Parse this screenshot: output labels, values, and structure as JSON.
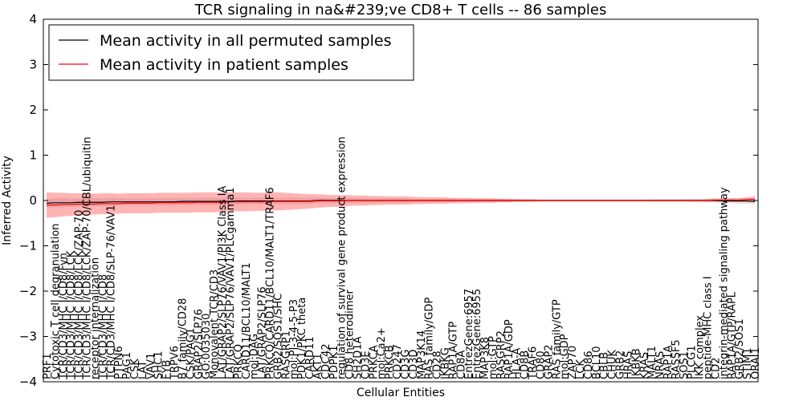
{
  "chart_data": {
    "type": "line",
    "title": "TCR signaling in na&#239;ve CD8+ T cells -- 86 samples",
    "xlabel": "Cellular Entities",
    "ylabel": "Inferred Activity",
    "ylim": [
      -4,
      4
    ],
    "yticks": [
      -4,
      -3,
      -2,
      -1,
      0,
      1,
      2,
      3,
      4
    ],
    "grid": false,
    "legend_position": "top-left",
    "categories": [
      "PRF1",
      "Cytotoxic T cell degranulation",
      "TCR/CD3/MHC I/CD8/Fyn",
      "TCR/CD3/MHC I/CD8/LCK",
      "TCR/CD3/MHC I/CD8/LCK/ZAP-70",
      "TCR/CD3/MHC I/CD8/LCK/ZAP-70/CBL/ubiquitin",
      "receptor internalization",
      "TCR/CD3/MHC I/CD8",
      "TCR/CD3/MHC I/CD8/SLP-76/VAV1",
      "PTPN6",
      "PAG1",
      "CSK",
      "LAT",
      "VAV1",
      "SHC1",
      "FYB",
      "TRPV6",
      "B7 family/CD28",
      "CSK/PAG1",
      "GRAP2/SLP76",
      "GO:0035030",
      "Monovalent TCR/CD3",
      "LAT/GRAP2/SLP76/VAV1/PI3K Class IA",
      "LAT/GRAP2/SLP76/VAV1/PLCgamma1",
      "PRKCQ",
      "CARD11/BCL10/MALT1",
      "mol:DAG",
      "LAT/GRAP2/SLP76",
      "PRKCQ/CARD11/BCL10/MALT1/TRAF6",
      "GRB2/SOS1/SHC",
      "RASGRP1",
      "mol:PI-3-4-5-P3",
      "PDK1/PKC theta",
      "CARD11",
      "AKT1",
      "CDC42",
      "PDPK1",
      "regulation of survival gene product expression",
      "CD8 heterodimer",
      "SH2D1A",
      "CD3E",
      "PRKCA",
      "mol:Ca2+",
      "PRKCB",
      "CD247",
      "CD3G",
      "CD3D",
      "MAP3K14",
      "RAS family/GDP",
      "CD28",
      "IKBKG",
      "RAP1A/GTP",
      "CD8A",
      "EntrezGene:6957",
      "EntrezGene:6955",
      "MAP3K8",
      "mol:GTP",
      "RASGRP2",
      "RAP1A/GDP",
      "HLA-A",
      "CD8B",
      "TRAF6",
      "CD80",
      "GRAP2",
      "RAS family/GTP",
      "mol:GDP",
      "ZAP70",
      "LCK",
      "CD86",
      "BCL10",
      "CBLB",
      "CHUK",
      "GRB2",
      "HRAS",
      "IKBKB",
      "KRAS",
      "MALT1",
      "NRAS",
      "RAP1A",
      "RASSF5",
      "SOS1",
      "PLCG1",
      "IKK complex",
      "peptide-MHC class I",
      "CD2",
      "integrin-mediated signaling pathway",
      "RAP1A/GTP/RAPL",
      "GRB2/SOS1",
      "STIM1",
      "ORAI1"
    ],
    "series": [
      {
        "name": "Mean activity in all permuted samples",
        "color": "#000000",
        "values": [
          -0.06,
          -0.05,
          -0.05,
          -0.05,
          -0.04,
          -0.04,
          -0.04,
          -0.04,
          -0.03,
          -0.03,
          -0.03,
          -0.03,
          -0.03,
          -0.03,
          -0.03,
          -0.03,
          -0.03,
          -0.02,
          -0.02,
          -0.02,
          -0.02,
          -0.02,
          -0.02,
          -0.02,
          -0.01,
          -0.01,
          -0.01,
          -0.01,
          -0.01,
          -0.01,
          -0.01,
          -0.01,
          -0.01,
          -0.01,
          0.0,
          0.0,
          0.0,
          0.0,
          0.0,
          0.0,
          0.0,
          0.0,
          0.0,
          0.0,
          0.0,
          0.0,
          0.0,
          0.0,
          0.0,
          0.0,
          0.0,
          0.0,
          0.0,
          0.0,
          0.0,
          0.0,
          0.0,
          0.0,
          0.0,
          0.0,
          0.0,
          0.0,
          0.0,
          0.0,
          0.0,
          0.0,
          0.0,
          0.0,
          0.0,
          0.0,
          0.0,
          0.0,
          0.0,
          0.0,
          0.0,
          0.0,
          0.0,
          0.0,
          0.0,
          0.0,
          0.0,
          0.0,
          0.0,
          0.0,
          0.0,
          -0.01,
          -0.01,
          -0.01,
          -0.01,
          -0.02
        ],
        "band": [
          0.1,
          0.1,
          0.1,
          0.09,
          0.09,
          0.09,
          0.09,
          0.09,
          0.09,
          0.08,
          0.08,
          0.08,
          0.08,
          0.08,
          0.08,
          0.08,
          0.08,
          0.08,
          0.08,
          0.08,
          0.08,
          0.08,
          0.08,
          0.08,
          0.08,
          0.07,
          0.07,
          0.07,
          0.07,
          0.07,
          0.07,
          0.07,
          0.07,
          0.07,
          0.06,
          0.06,
          0.06,
          0.06,
          0.06,
          0.05,
          0.05,
          0.05,
          0.05,
          0.05,
          0.05,
          0.05,
          0.04,
          0.04,
          0.04,
          0.04,
          0.04,
          0.04,
          0.03,
          0.03,
          0.03,
          0.03,
          0.03,
          0.03,
          0.03,
          0.02,
          0.02,
          0.02,
          0.02,
          0.02,
          0.02,
          0.02,
          0.02,
          0.02,
          0.02,
          0.02,
          0.02,
          0.02,
          0.02,
          0.02,
          0.02,
          0.02,
          0.03,
          0.03,
          0.03,
          0.03,
          0.03,
          0.04,
          0.04,
          0.04,
          0.05,
          0.05,
          0.05,
          0.06,
          0.06,
          0.06
        ]
      },
      {
        "name": "Mean activity in patient samples",
        "color": "#ff0000",
        "values": [
          -0.1,
          -0.1,
          -0.09,
          -0.09,
          -0.08,
          -0.08,
          -0.08,
          -0.07,
          -0.07,
          -0.07,
          -0.06,
          -0.06,
          -0.06,
          -0.06,
          -0.05,
          -0.05,
          -0.05,
          -0.05,
          -0.05,
          -0.04,
          -0.04,
          -0.04,
          -0.04,
          -0.03,
          -0.03,
          -0.03,
          -0.03,
          -0.03,
          -0.02,
          -0.02,
          -0.02,
          -0.02,
          -0.02,
          -0.02,
          -0.01,
          -0.01,
          -0.01,
          -0.01,
          0.0,
          0.0,
          0.0,
          0.0,
          0.0,
          0.0,
          0.0,
          0.0,
          0.0,
          0.0,
          0.0,
          0.0,
          0.0,
          0.0,
          0.0,
          0.0,
          0.0,
          0.0,
          0.0,
          0.0,
          0.0,
          0.0,
          0.0,
          0.0,
          0.0,
          0.0,
          0.0,
          0.0,
          0.0,
          0.0,
          0.0,
          0.0,
          0.0,
          0.0,
          0.0,
          0.0,
          0.0,
          0.0,
          0.0,
          0.0,
          0.0,
          0.0,
          0.0,
          0.0,
          0.0,
          0.0,
          0.01,
          0.01,
          0.01,
          0.01,
          0.02,
          0.03
        ],
        "band": [
          0.28,
          0.27,
          0.26,
          0.25,
          0.24,
          0.24,
          0.23,
          0.23,
          0.23,
          0.22,
          0.22,
          0.22,
          0.22,
          0.22,
          0.22,
          0.22,
          0.22,
          0.22,
          0.22,
          0.22,
          0.22,
          0.22,
          0.21,
          0.21,
          0.21,
          0.21,
          0.2,
          0.2,
          0.2,
          0.2,
          0.19,
          0.18,
          0.17,
          0.16,
          0.15,
          0.14,
          0.13,
          0.13,
          0.12,
          0.11,
          0.11,
          0.1,
          0.1,
          0.09,
          0.09,
          0.09,
          0.08,
          0.08,
          0.07,
          0.07,
          0.07,
          0.06,
          0.06,
          0.06,
          0.05,
          0.05,
          0.05,
          0.04,
          0.04,
          0.03,
          0.03,
          0.03,
          0.02,
          0.02,
          0.02,
          0.02,
          0.02,
          0.02,
          0.02,
          0.02,
          0.02,
          0.02,
          0.02,
          0.02,
          0.02,
          0.02,
          0.02,
          0.02,
          0.02,
          0.02,
          0.02,
          0.02,
          0.02,
          0.03,
          0.03,
          0.03,
          0.04,
          0.04,
          0.05,
          0.06
        ]
      }
    ]
  }
}
